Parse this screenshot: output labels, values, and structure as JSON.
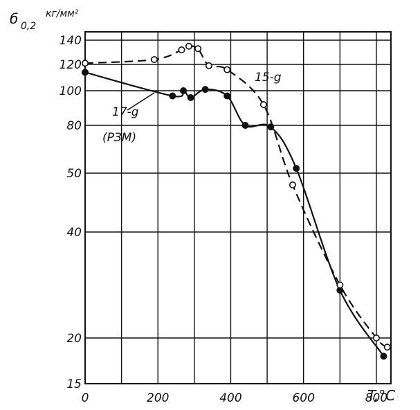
{
  "chart_data": {
    "type": "line",
    "ylabel_main": "б",
    "ylabel_sub": "0,2",
    "ylabel_unit": "кг/мм²",
    "xlabel": "T,°C",
    "x_ticks": [
      "0",
      "200",
      "400",
      "600",
      "800"
    ],
    "y_ticks": [
      "15",
      "20",
      "40",
      "50",
      "80",
      "100",
      "120",
      "140"
    ],
    "y_tick_values": [
      15,
      20,
      40,
      50,
      80,
      100,
      120,
      140
    ],
    "xlim": [
      0,
      840
    ],
    "ylim": [
      15,
      140
    ],
    "grid": true,
    "series": [
      {
        "name": "17-g (РЗМ)",
        "label_line1": "17-g",
        "label_line2": "(РЗМ)",
        "style": "solid",
        "marker": "filled",
        "points": [
          [
            0,
            114
          ],
          [
            240,
            97
          ],
          [
            270,
            100
          ],
          [
            290,
            96
          ],
          [
            330,
            101
          ],
          [
            390,
            97
          ],
          [
            440,
            80
          ],
          [
            510,
            79
          ],
          [
            580,
            53
          ],
          [
            700,
            29
          ],
          [
            820,
            18
          ]
        ]
      },
      {
        "name": "15-g",
        "label_line1": "15-g",
        "style": "dashed",
        "marker": "open",
        "points": [
          [
            0,
            121
          ],
          [
            190,
            124
          ],
          [
            265,
            132
          ],
          [
            285,
            135
          ],
          [
            310,
            133
          ],
          [
            340,
            119
          ],
          [
            390,
            116
          ],
          [
            490,
            92
          ],
          [
            570,
            48
          ],
          [
            700,
            30
          ],
          [
            800,
            20
          ],
          [
            830,
            19
          ]
        ]
      }
    ]
  }
}
